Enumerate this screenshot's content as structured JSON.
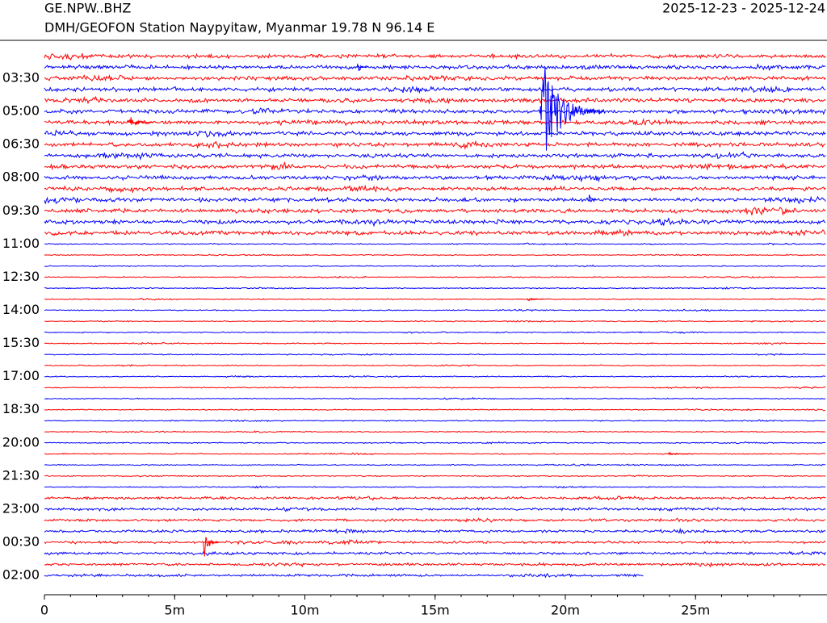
{
  "chart_data": {
    "type": "helicorder",
    "title": "GE.NPW..BHZ",
    "subtitle": "DMH/GEOFON Station Naypyitaw, Myanmar  19.78 N 96.14 E",
    "date_range": "2025-12-23 - 2025-12-24",
    "categories": [
      null,
      null,
      "03:30",
      null,
      null,
      "05:00",
      null,
      null,
      "06:30",
      null,
      null,
      "08:00",
      null,
      null,
      "09:30",
      null,
      null,
      "11:00",
      null,
      null,
      "12:30",
      null,
      null,
      "14:00",
      null,
      null,
      "15:30",
      null,
      null,
      "17:00",
      null,
      null,
      "18:30",
      null,
      null,
      "20:00",
      null,
      null,
      "21:30",
      null,
      null,
      "23:00",
      null,
      null,
      "00:30",
      null,
      null,
      "02:00"
    ],
    "colors": [
      "#ff0000",
      "#0000ff"
    ],
    "xlim": [
      0,
      30
    ],
    "xticks": [
      0,
      {
        "value": 5,
        "label": "5m"
      },
      {
        "value": 10,
        "label": "10m"
      },
      {
        "value": 15,
        "label": "15m"
      },
      {
        "value": 20,
        "label": "20m"
      },
      {
        "value": 25,
        "label": "25m"
      }
    ],
    "end_minute": 23,
    "events": [
      {
        "row": 1,
        "minute": 12,
        "amplitude": 0.8,
        "duration": 0.4
      },
      {
        "row": 5,
        "minute": 19,
        "amplitude": 6,
        "duration": 2.5
      },
      {
        "row": 6,
        "minute": 3.2,
        "amplitude": 0.8,
        "duration": 1
      },
      {
        "row": 13,
        "minute": 20.9,
        "amplitude": 0.7,
        "duration": 0.3
      },
      {
        "row": 22,
        "minute": 18.5,
        "amplitude": 0.3,
        "duration": 0.7
      },
      {
        "row": 36,
        "minute": 23.9,
        "amplitude": 0.25,
        "duration": 1
      },
      {
        "row": 44,
        "minute": 6.1,
        "amplitude": 2.5,
        "duration": 0.6
      }
    ]
  }
}
